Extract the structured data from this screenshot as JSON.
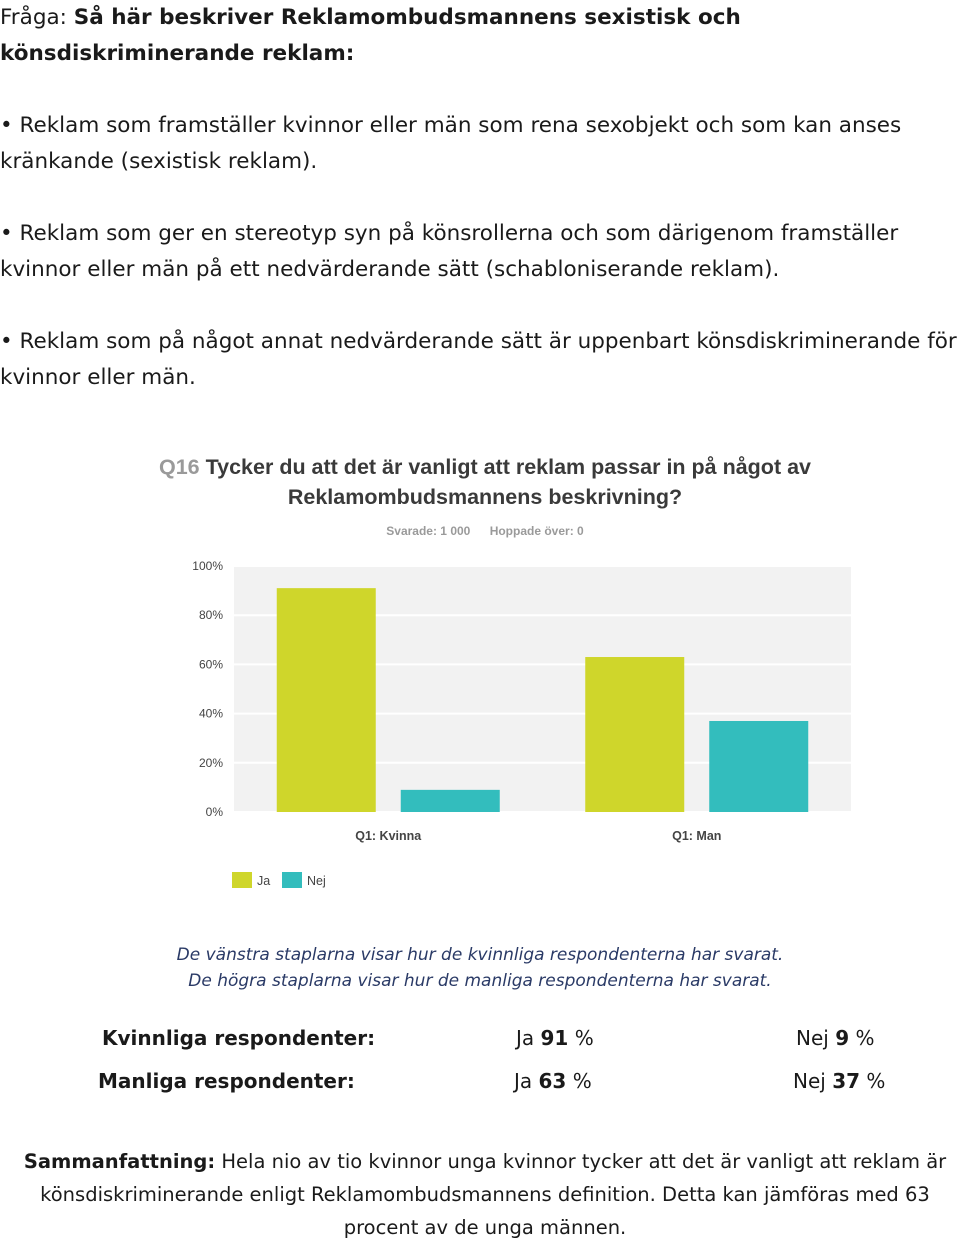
{
  "question_label": "Fråga:",
  "question_text": "Så här beskriver Reklamombudsmannens sexistisk och könsdiskriminerande reklam:",
  "bullets": [
    "Reklam som framställer kvinnor eller män som rena sexobjekt och som kan anses kränkande (sexistisk reklam).",
    "Reklam som ger en stereotyp syn på könsrollerna och som därigenom framställer kvinnor eller män på ett nedvärderande sätt (schabloniserande reklam).",
    "Reklam som på något annat nedvärderande sätt är uppenbart könsdiskriminerande för kvinnor eller män."
  ],
  "chart_data": {
    "type": "bar",
    "question_number": "Q16",
    "title_line1": "Tycker du att det är vanligt att reklam passar in på något av",
    "title_line2": "Reklamombudsmannens beskrivning?",
    "answered": "Svarade: 1 000",
    "skipped": "Hoppade över: 0",
    "categories": [
      "Q1: Kvinna",
      "Q1: Man"
    ],
    "series": [
      {
        "name": "Ja",
        "color": "#cfd62b",
        "values": [
          91,
          63
        ]
      },
      {
        "name": "Nej",
        "color": "#33bdbd",
        "values": [
          9,
          37
        ]
      }
    ],
    "ylim": [
      0,
      100
    ],
    "yticks": [
      "0%",
      "20%",
      "40%",
      "60%",
      "80%",
      "100%"
    ],
    "legend_placement": "bottom-left",
    "grid": true
  },
  "caption_line1": "De vänstra staplarna visar hur de kvinnliga respondenterna har svarat.",
  "caption_line2": "De högra staplarna visar hur de manliga respondenterna har svarat.",
  "respondents": [
    {
      "label": "Kvinnliga respondenter:",
      "ja_label": "Ja",
      "ja_value": "91",
      "nej_label": "Nej",
      "nej_value": "9",
      "unit": "%"
    },
    {
      "label": "Manliga respondenter:",
      "ja_label": "Ja",
      "ja_value": "63",
      "nej_label": "Nej",
      "nej_value": "37",
      "unit": "%"
    }
  ],
  "summary_label": "Sammanfattning:",
  "summary_text": "Hela nio av tio kvinnor unga kvinnor tycker att det är vanligt att reklam är könsdiskriminerande enligt Reklamombudsmannens definition. Detta kan jämföras med 63 procent av de unga männen."
}
